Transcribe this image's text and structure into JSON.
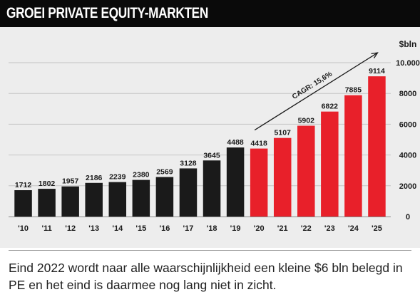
{
  "header": {
    "title": "GROEI PRIVATE EQUITY-MARKTEN"
  },
  "colors": {
    "header_bg": "#0a0a0a",
    "historical": "#1a1a1a",
    "projected": "#e8202a",
    "background": "#ededed"
  },
  "chart_data": {
    "type": "bar",
    "categories": [
      "'10",
      "'11",
      "'12",
      "'13",
      "'14",
      "'15",
      "'16",
      "'17",
      "'18",
      "'19",
      "'20",
      "'21",
      "'22",
      "'23",
      "'24",
      "'25"
    ],
    "values": [
      1712,
      1802,
      1957,
      2186,
      2239,
      2380,
      2569,
      3128,
      3645,
      4488,
      4418,
      5107,
      5902,
      6822,
      7885,
      9114
    ],
    "value_labels": [
      "1712",
      "1802",
      "1957",
      "2186",
      "2239",
      "2380",
      "2569",
      "3128",
      "3645",
      "4488",
      "4418",
      "5107",
      "5902",
      "6822",
      "7885",
      "9114"
    ],
    "projected_from_index": 10,
    "ylim": [
      0,
      10000
    ],
    "yticks": [
      0,
      2000,
      4000,
      6000,
      8000,
      10000
    ],
    "ytick_labels": [
      "0",
      "2000",
      "4000",
      "6000",
      "8000",
      "10.000"
    ],
    "y_axis_side": "right",
    "ylabel": "$bln",
    "xlabel": "",
    "grid": true,
    "annotation": {
      "text": "CAGR: 15,6%",
      "from_index": 10,
      "to_index": 15
    }
  },
  "caption": "Eind 2022 wordt naar alle waarschijnlijkheid een kleine $6 bln belegd in PE en het eind is daarmee nog lang niet in zicht."
}
